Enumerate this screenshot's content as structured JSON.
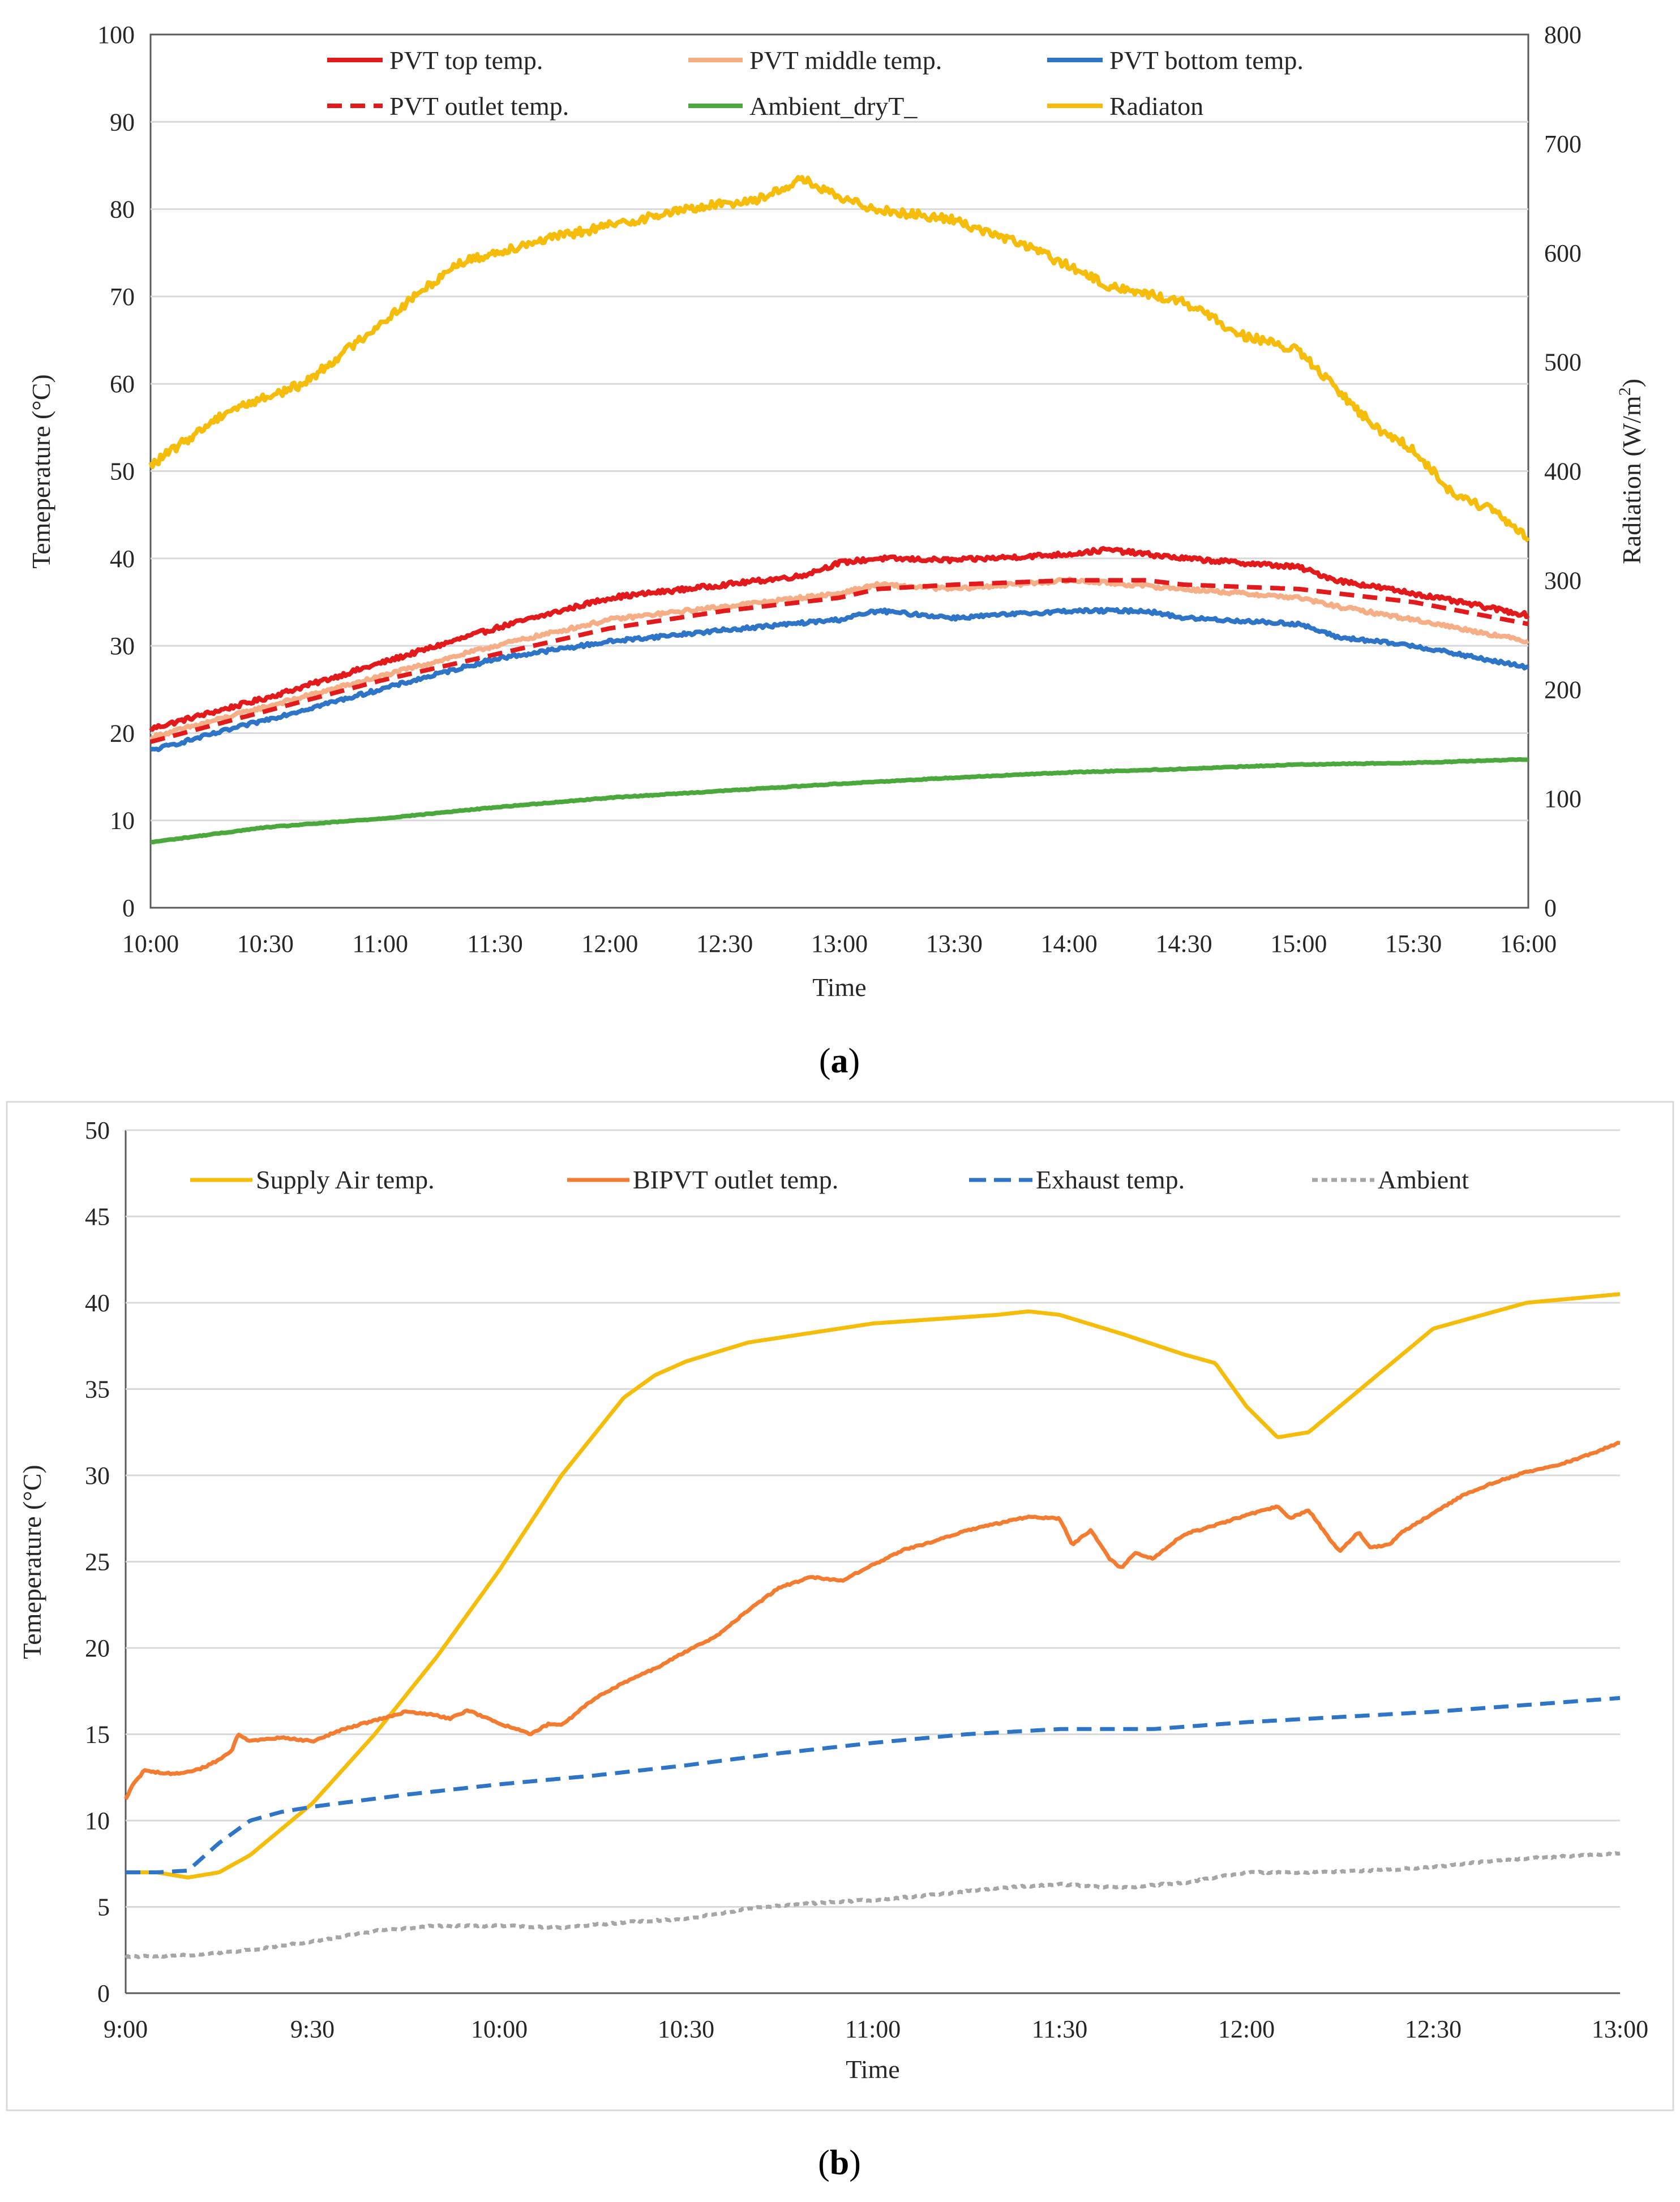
{
  "figure": {
    "caption_a": {
      "open": "(",
      "letter": "a",
      "close": ")"
    },
    "caption_b": {
      "open": "(",
      "letter": "b",
      "close": ")"
    }
  },
  "chart_data": [
    {
      "id": "a",
      "type": "line",
      "xlabel": "Time",
      "ylabel": "Temeperature (°C)",
      "y2label_main": "Radiation (W/m",
      "y2label_sup": "2",
      "y2label_end": ")",
      "xlim": [
        0,
        360
      ],
      "x_ticks": [
        0,
        30,
        60,
        90,
        120,
        150,
        180,
        210,
        240,
        270,
        300,
        330,
        360
      ],
      "x_tick_labels": [
        "10:00",
        "10:30",
        "11:00",
        "11:30",
        "12:00",
        "12:30",
        "13:00",
        "13:30",
        "14:00",
        "14:30",
        "15:00",
        "15:30",
        "16:00"
      ],
      "ylim": [
        0,
        100
      ],
      "y_ticks": [
        0,
        10,
        20,
        30,
        40,
        50,
        60,
        70,
        80,
        90,
        100
      ],
      "y2lim": [
        0,
        800
      ],
      "y2_ticks": [
        0,
        100,
        200,
        300,
        400,
        500,
        600,
        700,
        800
      ],
      "grid": true,
      "legend_position": "top",
      "series": [
        {
          "name": "PVT top temp.",
          "axis": "left",
          "color": "#e31a1c",
          "dash": "solid",
          "noise": 0.25,
          "x": [
            0,
            30,
            60,
            90,
            120,
            150,
            170,
            180,
            190,
            210,
            240,
            250,
            270,
            300,
            310,
            330,
            360
          ],
          "y": [
            20.5,
            24,
            28,
            32,
            35.5,
            37,
            38,
            39.5,
            40,
            39.8,
            40.5,
            41,
            40,
            39,
            37.5,
            36,
            33.5
          ]
        },
        {
          "name": "PVT middle temp.",
          "axis": "left",
          "color": "#f5ae86",
          "dash": "solid",
          "noise": 0.2,
          "x": [
            0,
            30,
            60,
            90,
            120,
            150,
            180,
            190,
            210,
            240,
            250,
            270,
            300,
            310,
            330,
            360
          ],
          "y": [
            19.5,
            23,
            26.5,
            30,
            33,
            34.5,
            36,
            37,
            36.5,
            37.5,
            37.2,
            36.5,
            35.5,
            34.5,
            33,
            30.5
          ]
        },
        {
          "name": "PVT bottom temp.",
          "axis": "left",
          "color": "#2e75c7",
          "dash": "solid",
          "noise": 0.2,
          "x": [
            0,
            30,
            60,
            90,
            120,
            150,
            180,
            190,
            210,
            240,
            260,
            270,
            300,
            310,
            330,
            360
          ],
          "y": [
            18,
            21.5,
            25,
            28.5,
            30.5,
            31.8,
            33,
            34,
            33.2,
            34,
            34,
            33.2,
            32.5,
            31,
            30,
            27.5
          ]
        },
        {
          "name": "PVT outlet temp.",
          "axis": "left",
          "color": "#e31a1c",
          "dash": "dashed",
          "noise": 0.0,
          "x": [
            0,
            30,
            60,
            90,
            120,
            150,
            180,
            190,
            210,
            240,
            260,
            270,
            300,
            330,
            360
          ],
          "y": [
            19,
            22.5,
            26,
            29,
            32,
            34,
            35.5,
            36.5,
            37,
            37.5,
            37.5,
            37,
            36.5,
            35,
            32.5
          ]
        },
        {
          "name": "Ambient_dryT_",
          "axis": "left",
          "color": "#4aa83c",
          "dash": "solid",
          "noise": 0.05,
          "x": [
            0,
            30,
            60,
            90,
            120,
            150,
            180,
            210,
            240,
            270,
            300,
            330,
            360
          ],
          "y": [
            7.5,
            9.2,
            10.2,
            11.5,
            12.6,
            13.4,
            14.2,
            14.9,
            15.5,
            15.9,
            16.4,
            16.6,
            17
          ]
        },
        {
          "name": "Radiaton",
          "axis": "right",
          "color": "#f5bd0a",
          "dash": "solid",
          "noise": 4,
          "x": [
            0,
            20,
            40,
            60,
            80,
            100,
            120,
            140,
            160,
            170,
            180,
            190,
            210,
            230,
            250,
            270,
            285,
            300,
            310,
            320,
            330,
            340,
            350,
            360
          ],
          "y": [
            405,
            455,
            480,
            535,
            590,
            610,
            625,
            640,
            650,
            668,
            650,
            640,
            630,
            605,
            570,
            555,
            525,
            510,
            475,
            440,
            420,
            380,
            365,
            338
          ]
        }
      ]
    },
    {
      "id": "b",
      "type": "line",
      "xlabel": "Time",
      "ylabel": "Temeperature (°C)",
      "xlim": [
        0,
        240
      ],
      "x_ticks": [
        0,
        30,
        60,
        90,
        120,
        150,
        180,
        210,
        240
      ],
      "x_tick_labels": [
        "9:00",
        "9:30",
        "10:00",
        "10:30",
        "11:00",
        "11:30",
        "12:00",
        "12:30",
        "13:00"
      ],
      "ylim": [
        0,
        50
      ],
      "y_ticks": [
        0,
        5,
        10,
        15,
        20,
        25,
        30,
        35,
        40,
        45,
        50
      ],
      "grid": true,
      "legend_position": "top",
      "series": [
        {
          "name": "Supply Air temp.",
          "axis": "left",
          "color": "#f5bd0a",
          "dash": "solid",
          "noise": 0.0,
          "x": [
            0,
            5,
            10,
            15,
            20,
            30,
            40,
            50,
            60,
            70,
            80,
            85,
            90,
            100,
            120,
            140,
            145,
            150,
            160,
            170,
            175,
            180,
            185,
            190,
            200,
            210,
            225,
            240
          ],
          "y": [
            7,
            7,
            6.7,
            7,
            8,
            11,
            15,
            19.5,
            24.5,
            30,
            34.5,
            35.8,
            36.6,
            37.7,
            38.8,
            39.3,
            39.5,
            39.3,
            38.2,
            37,
            36.5,
            34,
            32.2,
            32.5,
            35.5,
            38.5,
            40,
            40.5
          ]
        },
        {
          "name": "BIPVT outlet temp.",
          "axis": "left",
          "color": "#f47c30",
          "dash": "solid",
          "noise": 0.05,
          "x": [
            0,
            1,
            3,
            5,
            8,
            12,
            15,
            17,
            18,
            20,
            25,
            30,
            35,
            40,
            45,
            50,
            52,
            55,
            60,
            63,
            65,
            68,
            70,
            75,
            80,
            85,
            90,
            95,
            100,
            105,
            110,
            115,
            120,
            125,
            130,
            135,
            140,
            145,
            150,
            152,
            155,
            158,
            160,
            162,
            165,
            170,
            175,
            180,
            185,
            187,
            190,
            193,
            195,
            198,
            200,
            203,
            205,
            210,
            215,
            220,
            225,
            230,
            235,
            240
          ],
          "y": [
            11.2,
            12,
            12.9,
            12.8,
            12.7,
            13,
            13.5,
            14,
            15,
            14.6,
            14.8,
            14.6,
            15.3,
            15.8,
            16.3,
            16.1,
            15.9,
            16.4,
            15.6,
            15.3,
            15,
            15.6,
            15.5,
            17,
            18,
            18.8,
            19.8,
            20.7,
            22.2,
            23.5,
            24.1,
            23.9,
            24.8,
            25.7,
            26.2,
            26.8,
            27.2,
            27.6,
            27.5,
            26,
            26.8,
            25.2,
            24.6,
            25.5,
            25.2,
            26.6,
            27.1,
            27.7,
            28.2,
            27.5,
            28,
            26.5,
            25.6,
            26.7,
            25.8,
            26,
            26.7,
            27.8,
            28.9,
            29.6,
            30.2,
            30.6,
            31.2,
            31.9
          ]
        },
        {
          "name": "Exhaust temp.",
          "axis": "left",
          "color": "#2e75c7",
          "dash": "dashed",
          "noise": 0.0,
          "x": [
            0,
            5,
            10,
            15,
            20,
            25,
            30,
            45,
            60,
            75,
            90,
            105,
            120,
            135,
            150,
            165,
            180,
            195,
            210,
            225,
            240
          ],
          "y": [
            7,
            7,
            7.1,
            8.7,
            10,
            10.5,
            10.8,
            11.5,
            12.1,
            12.6,
            13.2,
            13.9,
            14.5,
            15,
            15.3,
            15.3,
            15.7,
            16,
            16.3,
            16.7,
            17.1
          ]
        },
        {
          "name": "Ambient",
          "axis": "left",
          "color": "#a6a6a6",
          "dash": "dotted",
          "noise": 0.05,
          "x": [
            0,
            10,
            20,
            30,
            40,
            50,
            60,
            70,
            80,
            90,
            100,
            110,
            120,
            130,
            140,
            150,
            160,
            170,
            180,
            190,
            200,
            210,
            220,
            230,
            240
          ],
          "y": [
            2.1,
            2.2,
            2.5,
            3,
            3.6,
            3.9,
            3.9,
            3.8,
            4.1,
            4.3,
            4.9,
            5.2,
            5.4,
            5.7,
            6.1,
            6.3,
            6.1,
            6.4,
            7,
            7,
            7.1,
            7.3,
            7.7,
            7.9,
            8.1
          ]
        }
      ]
    }
  ]
}
